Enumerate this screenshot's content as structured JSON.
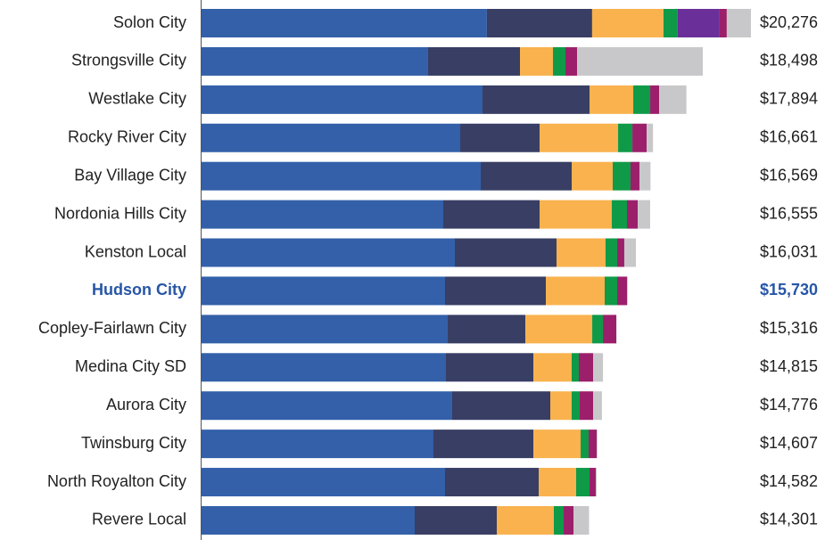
{
  "chart_data": {
    "type": "stacked-bar-horizontal",
    "categories": [
      "Solon City",
      "Strongsville City",
      "Westlake City",
      "Rocky River City",
      "Bay Village City",
      "Nordonia Hills City",
      "Kenston Local",
      "Hudson City",
      "Copley-Fairlawn City",
      "Medina City SD",
      "Aurora City",
      "Twinsburg City",
      "North Royalton City",
      "Revere Local"
    ],
    "series": [
      {
        "color": "#3360a9",
        "values": [
          10530,
          8361,
          10369,
          9546,
          10303,
          8920,
          9348,
          8986,
          9085,
          9019,
          9249,
          8558,
          8986,
          7867
        ]
      },
      {
        "color": "#383e64",
        "values": [
          3884,
          3390,
          3950,
          2930,
          3357,
          3555,
          3752,
          3720,
          2864,
          3226,
          3621,
          3687,
          3456,
          3028
        ]
      },
      {
        "color": "#f9b24e",
        "values": [
          2633,
          1218,
          1613,
          2897,
          1514,
          2666,
          1810,
          2172,
          2469,
          1415,
          790,
          1745,
          1382,
          2107
        ]
      },
      {
        "color": "#0f9a48",
        "values": [
          527,
          461,
          625,
          527,
          658,
          560,
          428,
          461,
          395,
          263,
          296,
          296,
          494,
          362
        ]
      },
      {
        "color": "#6a2f98",
        "values": [
          1547,
          0,
          0,
          0,
          0,
          0,
          0,
          0,
          0,
          0,
          0,
          0,
          0,
          0
        ]
      },
      {
        "color": "#9c1f6b",
        "values": [
          263,
          428,
          329,
          527,
          329,
          395,
          263,
          362,
          494,
          527,
          494,
          296,
          230,
          362
        ]
      },
      {
        "color": "#c8c8ca",
        "values": [
          892,
          4640,
          1008,
          234,
          408,
          459,
          430,
          29,
          9,
          365,
          326,
          25,
          34,
          575
        ]
      }
    ],
    "totals": [
      20276,
      18498,
      17894,
      16661,
      16569,
      16555,
      16031,
      15730,
      15316,
      14815,
      14776,
      14607,
      14582,
      14301
    ],
    "total_labels": [
      "$20,276",
      "$18,498",
      "$17,894",
      "$16,661",
      "$16,569",
      "$16,555",
      "$16,031",
      "$15,730",
      "$15,316",
      "$14,815",
      "$14,776",
      "$14,607",
      "$14,582",
      "$14,301"
    ],
    "highlight": 7,
    "highlight_color": "#2756a6"
  }
}
